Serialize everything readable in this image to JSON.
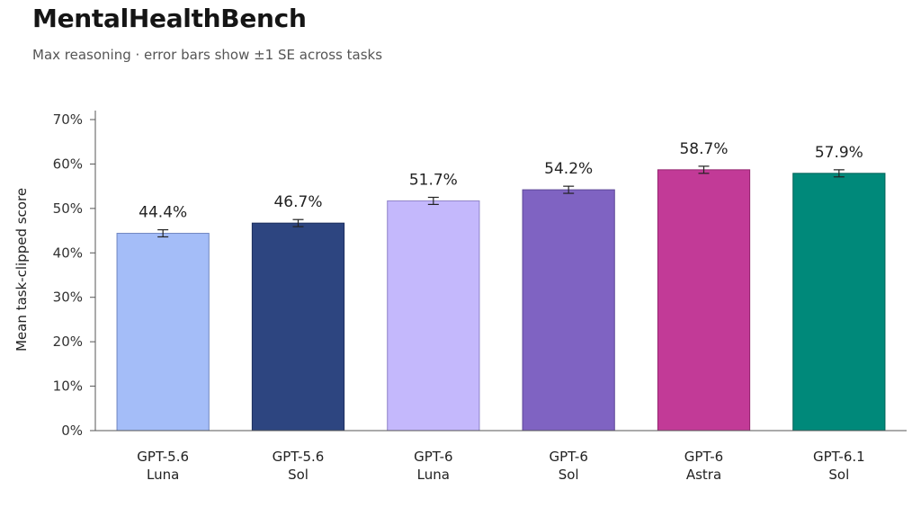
{
  "header": {
    "title": "MentalHealthBench",
    "subtitle": "Max reasoning · error bars show ±1 SE across tasks"
  },
  "chart_data": {
    "type": "bar",
    "title": "MentalHealthBench",
    "subtitle": "Max reasoning · error bars show ±1 SE across tasks",
    "xlabel": "",
    "ylabel": "Mean task-clipped score",
    "ylim": [
      0,
      70
    ],
    "yticks": [
      0,
      10,
      20,
      30,
      40,
      50,
      60,
      70
    ],
    "ytick_labels": [
      "0%",
      "10%",
      "20%",
      "30%",
      "40%",
      "50%",
      "60%",
      "70%"
    ],
    "grid": false,
    "categories": [
      [
        "GPT-5.6",
        "Luna"
      ],
      [
        "GPT-5.6",
        "Sol"
      ],
      [
        "GPT-6",
        "Luna"
      ],
      [
        "GPT-6",
        "Sol"
      ],
      [
        "GPT-6",
        "Astra"
      ],
      [
        "GPT-6.1",
        "Sol"
      ]
    ],
    "values": [
      44.4,
      46.7,
      51.7,
      54.2,
      58.7,
      57.9
    ],
    "value_labels": [
      "44.4%",
      "46.7%",
      "51.7%",
      "54.2%",
      "58.7%",
      "57.9%"
    ],
    "error_se": [
      0.8,
      0.8,
      0.8,
      0.8,
      0.8,
      0.8
    ],
    "colors": [
      "#a4bdf8",
      "#2d4580",
      "#c4b8fc",
      "#7f63c2",
      "#c23a97",
      "#00897a"
    ],
    "edge_colors": [
      "#6f86c0",
      "#1d2f5e",
      "#8f84c8",
      "#5d4797",
      "#93266f",
      "#006358"
    ]
  }
}
